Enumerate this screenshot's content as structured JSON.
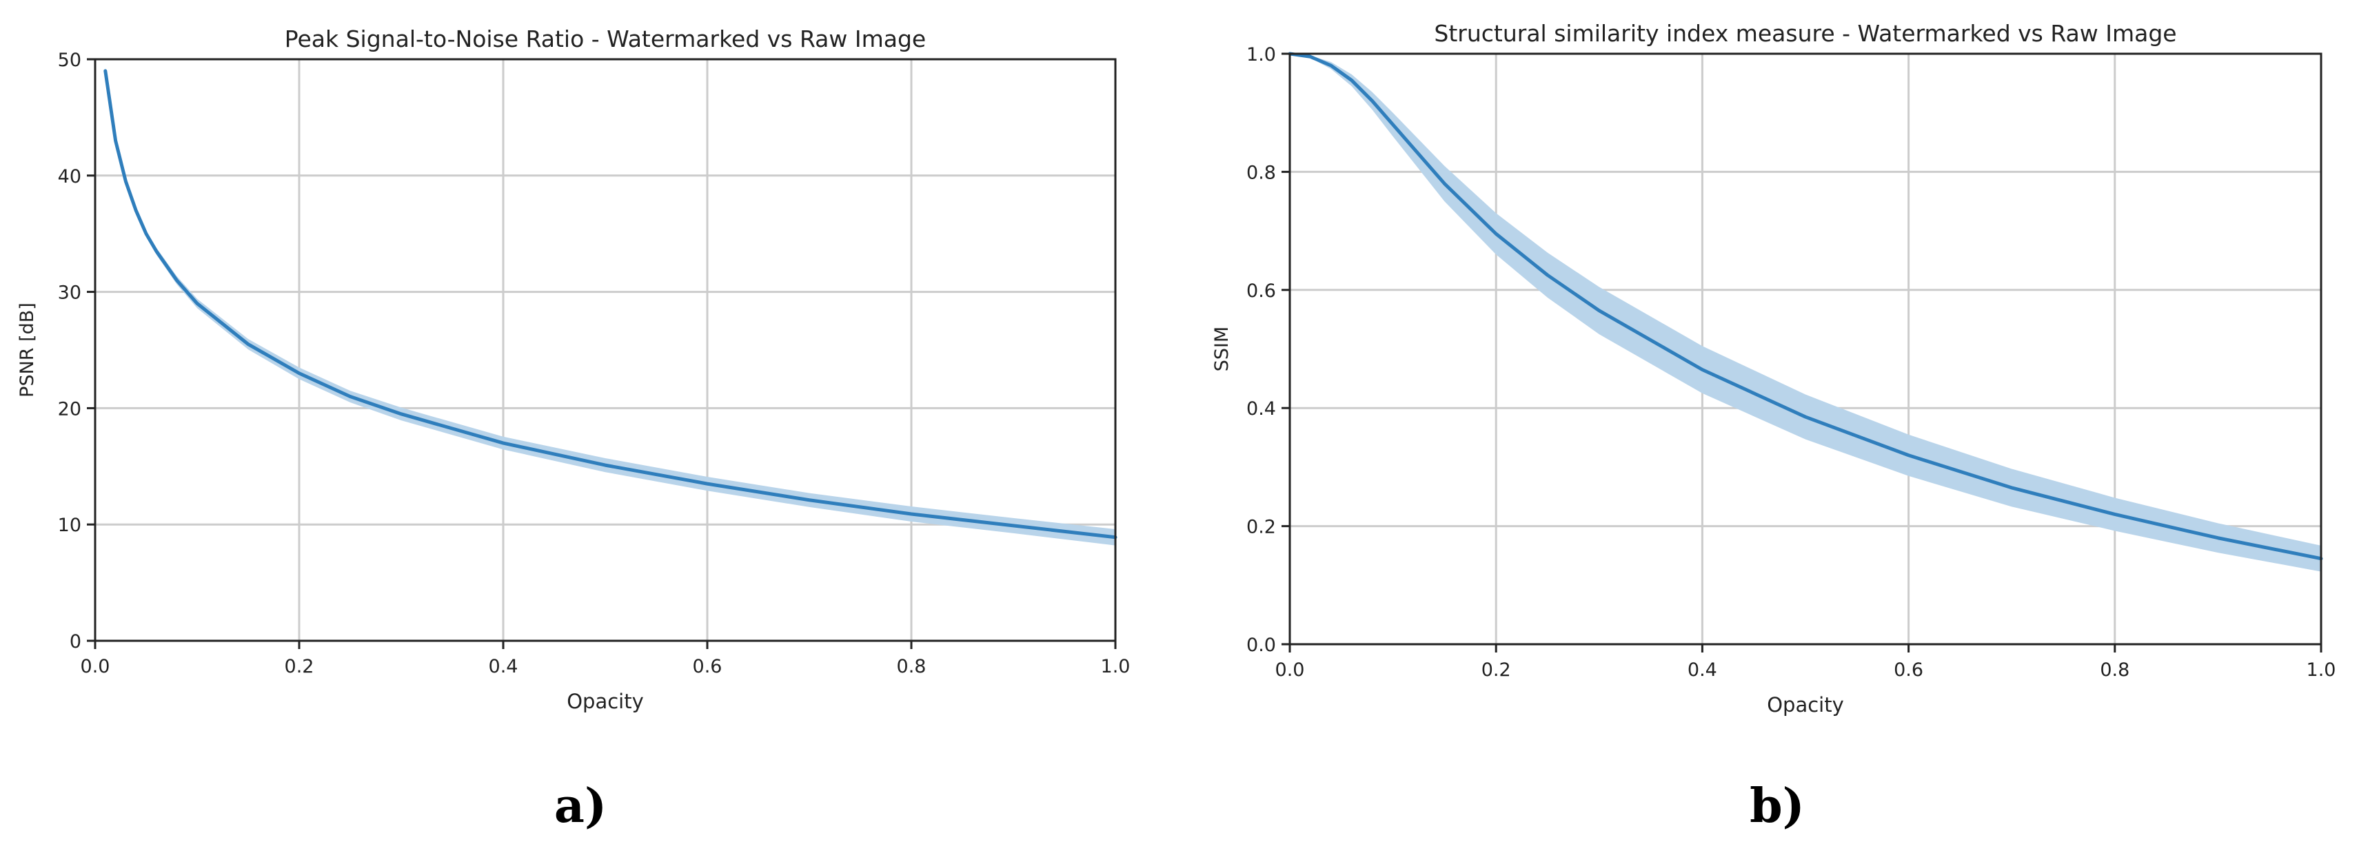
{
  "colors": {
    "line": "#2f7ebc",
    "band": "#b9d4ea",
    "grid": "#cccccc",
    "axis": "#222222"
  },
  "panels": [
    {
      "label": "a)"
    },
    {
      "label": "b)"
    }
  ],
  "chart_data": [
    {
      "type": "line",
      "title": "Peak Signal-to-Noise Ratio - Watermarked vs Raw Image",
      "xlabel": "Opacity",
      "ylabel": "PSNR [dB]",
      "xlim": [
        0.0,
        1.0
      ],
      "ylim": [
        0,
        50
      ],
      "xticks": [
        "0.0",
        "0.2",
        "0.4",
        "0.6",
        "0.8",
        "1.0"
      ],
      "yticks": [
        "0",
        "10",
        "20",
        "30",
        "40",
        "50"
      ],
      "grid": true,
      "series": [
        {
          "x": [
            0.01,
            0.02,
            0.03,
            0.04,
            0.05,
            0.06,
            0.08,
            0.1,
            0.15,
            0.2,
            0.25,
            0.3,
            0.4,
            0.5,
            0.6,
            0.7,
            0.8,
            0.9,
            1.0
          ],
          "y": [
            49.0,
            43.0,
            39.5,
            37.0,
            35.0,
            33.5,
            31.0,
            29.0,
            25.5,
            23.0,
            21.0,
            19.5,
            17.0,
            15.1,
            13.5,
            12.1,
            10.9,
            9.9,
            8.9
          ],
          "band": [
            0.0,
            0.1,
            0.15,
            0.2,
            0.25,
            0.3,
            0.35,
            0.4,
            0.45,
            0.5,
            0.5,
            0.55,
            0.55,
            0.6,
            0.6,
            0.6,
            0.65,
            0.65,
            0.7
          ]
        }
      ]
    },
    {
      "type": "line",
      "title": "Structural similarity index measure -  Watermarked vs Raw Image",
      "xlabel": "Opacity",
      "ylabel": "SSIM",
      "xlim": [
        0.0,
        1.0
      ],
      "ylim": [
        0.0,
        1.0
      ],
      "xticks": [
        "0.0",
        "0.2",
        "0.4",
        "0.6",
        "0.8",
        "1.0"
      ],
      "yticks": [
        "0.0",
        "0.2",
        "0.4",
        "0.6",
        "0.8",
        "1.0"
      ],
      "grid": true,
      "series": [
        {
          "x": [
            0.0,
            0.02,
            0.04,
            0.06,
            0.08,
            0.1,
            0.15,
            0.2,
            0.25,
            0.3,
            0.4,
            0.5,
            0.6,
            0.7,
            0.8,
            0.9,
            1.0
          ],
          "y": [
            1.0,
            0.995,
            0.98,
            0.955,
            0.92,
            0.88,
            0.78,
            0.695,
            0.625,
            0.565,
            0.465,
            0.385,
            0.32,
            0.265,
            0.22,
            0.18,
            0.145
          ],
          "band": [
            0.0,
            0.002,
            0.006,
            0.01,
            0.015,
            0.02,
            0.03,
            0.035,
            0.038,
            0.04,
            0.04,
            0.038,
            0.035,
            0.032,
            0.028,
            0.025,
            0.022
          ]
        }
      ]
    }
  ]
}
